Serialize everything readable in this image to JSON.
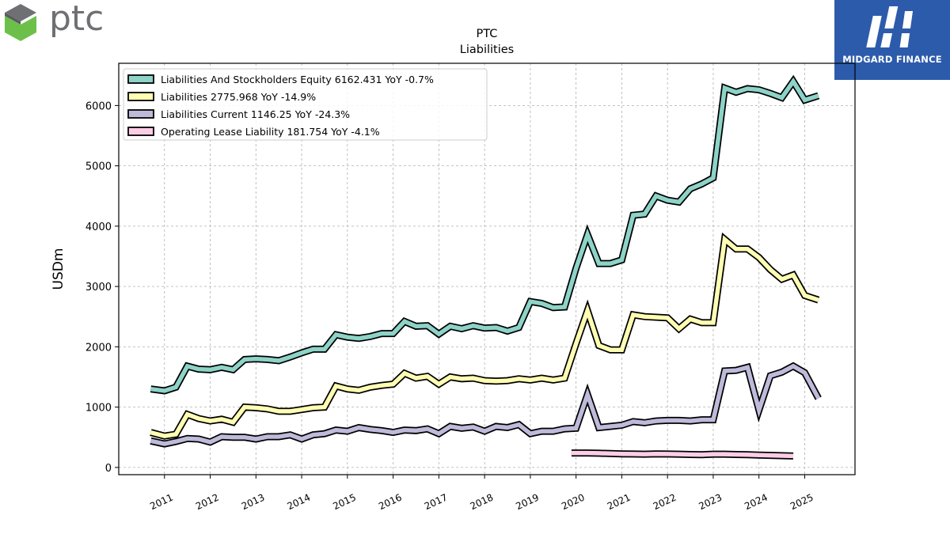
{
  "brand": {
    "left_logo_text": "ptc",
    "right_logo_text": "MIDGARD FINANCE",
    "ptc_colors": [
      "#6f7073",
      "#6cc04a"
    ],
    "midgard_bg": "#2d5bab"
  },
  "chart_data": {
    "type": "line",
    "title": "PTC",
    "subtitle": "Liabilities",
    "xlabel": "",
    "ylabel": "USDm",
    "xlim": [
      2010.0,
      2026.1
    ],
    "ylim": [
      -120,
      6700
    ],
    "yticks": [
      0,
      1000,
      2000,
      3000,
      4000,
      5000,
      6000
    ],
    "xticks": [
      2011,
      2012,
      2013,
      2014,
      2015,
      2016,
      2017,
      2018,
      2019,
      2020,
      2021,
      2022,
      2023,
      2024,
      2025
    ],
    "xtick_labels": [
      "2011",
      "2012",
      "2013",
      "2014",
      "2015",
      "2016",
      "2017",
      "2018",
      "2019",
      "2020",
      "2021",
      "2022",
      "2023",
      "2024",
      "2025"
    ],
    "grid": true,
    "legend_position": "top-left",
    "series": [
      {
        "name": "Liabilities And Stockholders Equity",
        "legend_label": "Liabilities And Stockholders Equity  6162.431 YoY -0.7%",
        "color": "#8dd3c7",
        "x": [
          2010.7,
          2011.0,
          2011.25,
          2011.5,
          2011.75,
          2012.0,
          2012.25,
          2012.5,
          2012.75,
          2013.0,
          2013.25,
          2013.5,
          2013.75,
          2014.0,
          2014.25,
          2014.5,
          2014.75,
          2015.0,
          2015.25,
          2015.5,
          2015.75,
          2016.0,
          2016.25,
          2016.5,
          2016.75,
          2017.0,
          2017.25,
          2017.5,
          2017.75,
          2018.0,
          2018.25,
          2018.5,
          2018.75,
          2019.0,
          2019.25,
          2019.5,
          2019.75,
          2020.0,
          2020.25,
          2020.5,
          2020.75,
          2021.0,
          2021.25,
          2021.5,
          2021.75,
          2022.0,
          2022.25,
          2022.5,
          2022.75,
          2023.0,
          2023.25,
          2023.5,
          2023.75,
          2024.0,
          2024.25,
          2024.5,
          2024.75,
          2025.0,
          2025.3
        ],
        "y": [
          1300,
          1270,
          1330,
          1680,
          1630,
          1620,
          1660,
          1620,
          1790,
          1800,
          1790,
          1770,
          1830,
          1900,
          1960,
          1960,
          2200,
          2160,
          2140,
          2170,
          2220,
          2220,
          2420,
          2340,
          2350,
          2210,
          2340,
          2300,
          2350,
          2310,
          2320,
          2260,
          2320,
          2750,
          2720,
          2650,
          2660,
          3300,
          3860,
          3380,
          3380,
          3440,
          4180,
          4200,
          4500,
          4430,
          4400,
          4620,
          4700,
          4800,
          6290,
          6220,
          6280,
          6260,
          6200,
          6130,
          6400,
          6090,
          6162
        ]
      },
      {
        "name": "Liabilities",
        "legend_label": "Liabilities  2775.968 YoY -14.9%",
        "color": "#ffffb3",
        "x": [
          2010.7,
          2011.0,
          2011.25,
          2011.5,
          2011.75,
          2012.0,
          2012.25,
          2012.5,
          2012.75,
          2013.0,
          2013.25,
          2013.5,
          2013.75,
          2014.0,
          2014.25,
          2014.5,
          2014.75,
          2015.0,
          2015.25,
          2015.5,
          2015.75,
          2016.0,
          2016.25,
          2016.5,
          2016.75,
          2017.0,
          2017.25,
          2017.5,
          2017.75,
          2018.0,
          2018.25,
          2018.5,
          2018.75,
          2019.0,
          2019.25,
          2019.5,
          2019.75,
          2020.0,
          2020.25,
          2020.5,
          2020.75,
          2021.0,
          2021.25,
          2021.5,
          2021.75,
          2022.0,
          2022.25,
          2022.5,
          2022.75,
          2023.0,
          2023.25,
          2023.5,
          2023.75,
          2024.0,
          2024.25,
          2024.5,
          2024.75,
          2025.0,
          2025.3
        ],
        "y": [
          580,
          520,
          550,
          880,
          810,
          770,
          800,
          750,
          1000,
          990,
          970,
          930,
          930,
          960,
          990,
          1000,
          1350,
          1300,
          1280,
          1330,
          1360,
          1380,
          1560,
          1480,
          1510,
          1380,
          1500,
          1470,
          1480,
          1440,
          1430,
          1440,
          1470,
          1450,
          1480,
          1450,
          1480,
          2050,
          2600,
          2020,
          1950,
          1950,
          2530,
          2500,
          2490,
          2480,
          2300,
          2460,
          2400,
          2400,
          3780,
          3620,
          3620,
          3480,
          3280,
          3120,
          3190,
          2850,
          2776
        ]
      },
      {
        "name": "Liabilities Current",
        "legend_label": "Liabilities Current  1146.25 YoY -24.3%",
        "color": "#bebada",
        "x": [
          2010.7,
          2011.0,
          2011.25,
          2011.5,
          2011.75,
          2012.0,
          2012.25,
          2012.5,
          2012.75,
          2013.0,
          2013.25,
          2013.5,
          2013.75,
          2014.0,
          2014.25,
          2014.5,
          2014.75,
          2015.0,
          2015.25,
          2015.5,
          2015.75,
          2016.0,
          2016.25,
          2016.5,
          2016.75,
          2017.0,
          2017.25,
          2017.5,
          2017.75,
          2018.0,
          2018.25,
          2018.5,
          2018.75,
          2019.0,
          2019.25,
          2019.5,
          2019.75,
          2020.0,
          2020.25,
          2020.5,
          2020.75,
          2021.0,
          2021.25,
          2021.5,
          2021.75,
          2022.0,
          2022.25,
          2022.5,
          2022.75,
          2023.0,
          2023.25,
          2023.5,
          2023.75,
          2024.0,
          2024.25,
          2024.5,
          2024.75,
          2025.0,
          2025.3
        ],
        "y": [
          440,
          390,
          430,
          480,
          470,
          420,
          510,
          500,
          500,
          470,
          510,
          510,
          540,
          470,
          540,
          560,
          620,
          600,
          660,
          630,
          610,
          580,
          620,
          610,
          640,
          560,
          680,
          650,
          670,
          600,
          680,
          660,
          710,
          560,
          600,
          600,
          640,
          650,
          1210,
          660,
          680,
          700,
          760,
          740,
          770,
          780,
          780,
          770,
          790,
          790,
          1600,
          1610,
          1660,
          950,
          1520,
          1580,
          1680,
          1570,
          1146
        ]
      },
      {
        "name": "Operating Lease Liability",
        "legend_label": "Operating Lease Liability  181.754 YoY -4.1%",
        "color": "#fccde5",
        "x": [
          2019.9,
          2020.25,
          2020.5,
          2020.75,
          2021.0,
          2021.25,
          2021.5,
          2021.75,
          2022.0,
          2022.25,
          2022.5,
          2022.75,
          2023.0,
          2023.25,
          2023.5,
          2023.75,
          2024.0,
          2024.25,
          2024.5,
          2024.75
        ],
        "y": [
          240,
          240,
          235,
          230,
          225,
          222,
          220,
          225,
          222,
          220,
          215,
          210,
          220,
          220,
          215,
          212,
          205,
          200,
          195,
          190
        ]
      }
    ]
  }
}
